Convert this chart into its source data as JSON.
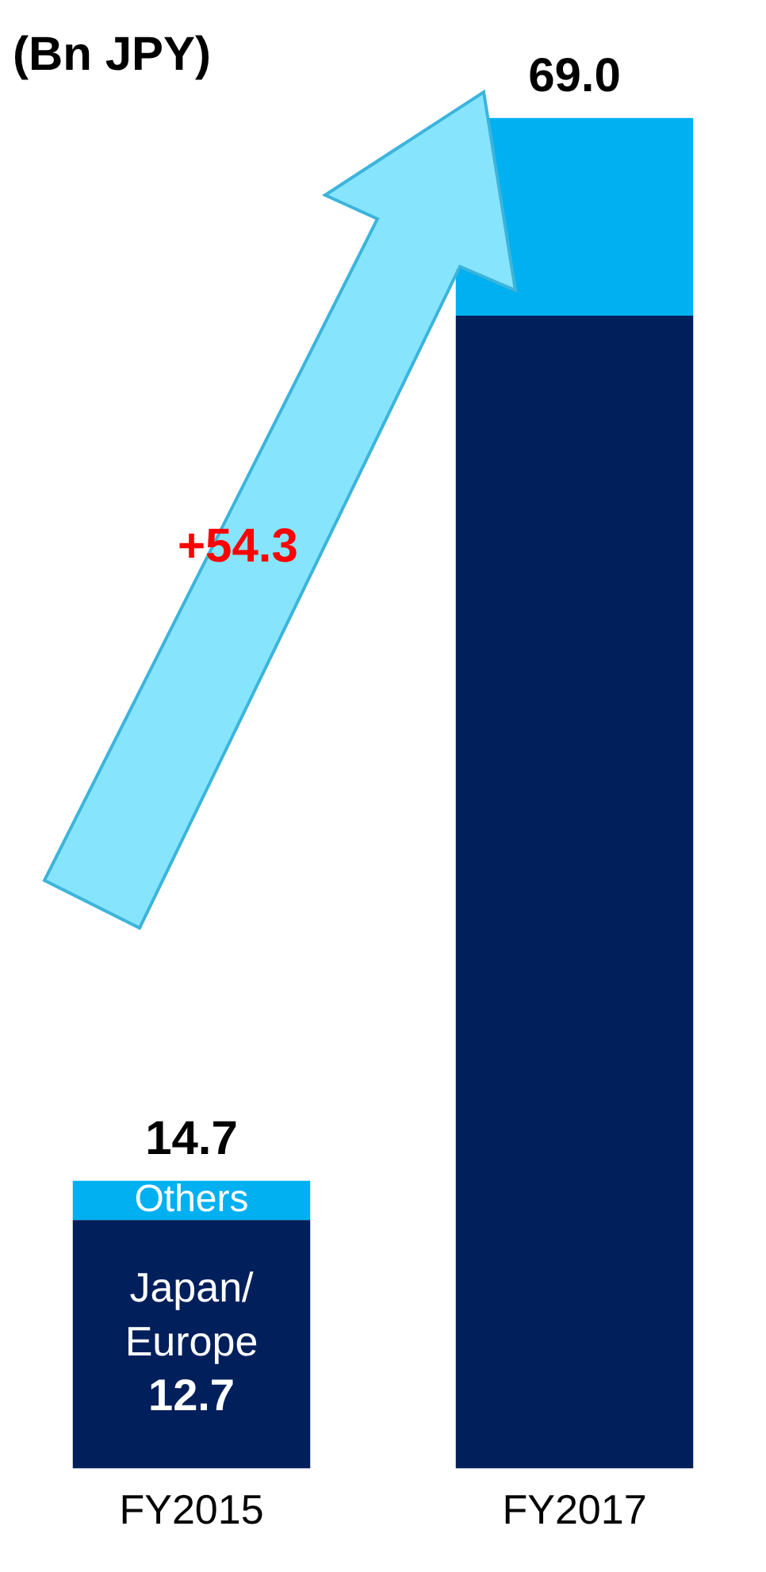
{
  "chart_data": {
    "type": "bar",
    "title": "(Bn JPY)",
    "stacked": true,
    "categories": [
      "FY2015",
      "FY2017"
    ],
    "series": [
      {
        "name": "Japan/Europe",
        "color": "#001f5b",
        "values": [
          12.7,
          58.9
        ],
        "value_labels": [
          "12.7",
          null
        ]
      },
      {
        "name": "Others",
        "color": "#00b0f0",
        "values": [
          2.0,
          10.1
        ]
      }
    ],
    "totals": [
      "14.7",
      "69.0"
    ],
    "annotations": [
      "+54.3"
    ],
    "grid": false,
    "legend": false,
    "tick_labels": "x"
  }
}
